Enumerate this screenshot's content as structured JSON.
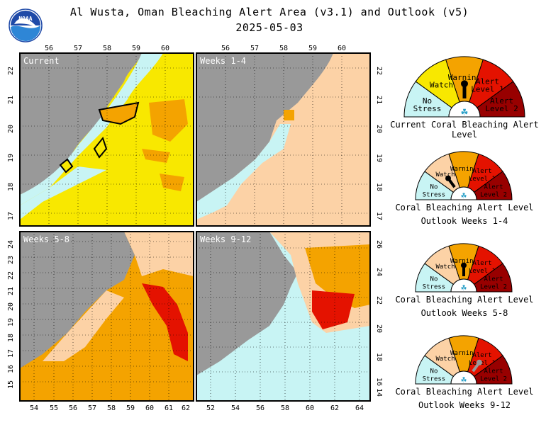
{
  "header": {
    "title": "Al Wusta, Oman Bleaching Alert Area (v3.1) and Outlook (v5)",
    "date": "2025-05-03"
  },
  "logo": {
    "text": "NOAA"
  },
  "panels": [
    {
      "label": "Current",
      "top_ticks": [
        "56",
        "57",
        "58",
        "59",
        "60"
      ],
      "side_ticks": [
        "22",
        "21",
        "20",
        "19",
        "18",
        "17"
      ],
      "side": "left"
    },
    {
      "label": "Weeks 1-4",
      "top_ticks": [
        "56",
        "57",
        "58",
        "59",
        "60"
      ],
      "side_ticks": [
        "22",
        "21",
        "20",
        "19",
        "18",
        "17"
      ],
      "side": "right"
    },
    {
      "label": "Weeks 5-8",
      "bottom_ticks": [
        "54",
        "55",
        "56",
        "57",
        "58",
        "59",
        "60",
        "61",
        "62"
      ],
      "side_ticks": [
        "24",
        "23",
        "22",
        "21",
        "20",
        "19",
        "18",
        "17",
        "16",
        "15"
      ],
      "side": "left"
    },
    {
      "label": "Weeks 9-12",
      "bottom_ticks": [
        "52",
        "54",
        "56",
        "58",
        "60",
        "62",
        "64"
      ],
      "side_ticks": [
        "26",
        "24",
        "22",
        "20",
        "18",
        "16",
        "14"
      ],
      "side": "right"
    }
  ],
  "gauges": [
    {
      "caption": "Current Coral Bleaching Alert Level",
      "subcaption": "",
      "level": "Warning"
    },
    {
      "caption": "Coral Bleaching Alert Level",
      "subcaption": "Outlook Weeks 1-4",
      "level": "Watch"
    },
    {
      "caption": "Coral Bleaching Alert Level",
      "subcaption": "Outlook Weeks 5-8",
      "level": "Warning"
    },
    {
      "caption": "Coral Bleaching Alert Level",
      "subcaption": "Outlook Weeks 9-12",
      "level": "Alert Level 1"
    }
  ],
  "gauge_segments": [
    {
      "l1": "No",
      "l2": "Stress",
      "color": "#c8f4f4"
    },
    {
      "l1": "Watch",
      "l2": "",
      "color": "#f8e800"
    },
    {
      "l1": "Warning",
      "l2": "",
      "color": "#f4a300"
    },
    {
      "l1": "Alert",
      "l2": "Level 1",
      "color": "#e41200"
    },
    {
      "l1": "Alert",
      "l2": "Level 2",
      "color": "#980000"
    }
  ],
  "outlook_watch_color": "#fcd2a6",
  "colors": {
    "land": "#999999",
    "nostress": "#c8f4f4",
    "watch": "#f8e800",
    "warning": "#f4a300",
    "alert1": "#e41200"
  }
}
